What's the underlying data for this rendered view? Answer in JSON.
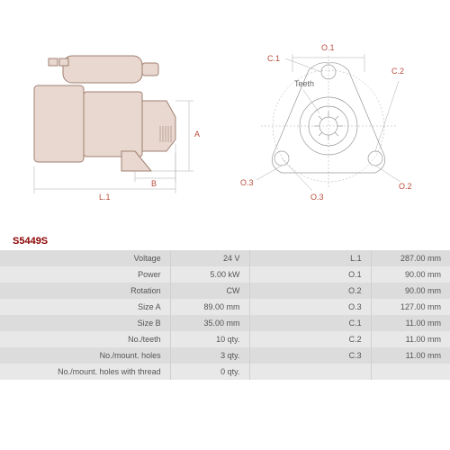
{
  "part_number": "S5449S",
  "side_view": {
    "labels": {
      "L1": "L.1",
      "A": "A",
      "B": "B"
    }
  },
  "front_view": {
    "labels": {
      "O1": "O.1",
      "O2": "O.2",
      "O3": "O.3",
      "C1": "C.1",
      "C2": "C.2",
      "teeth": "Teeth"
    }
  },
  "specs": {
    "rows": [
      {
        "l1": "Voltage",
        "v1": "24 V",
        "l2": "L.1",
        "v2": "287.00 mm"
      },
      {
        "l1": "Power",
        "v1": "5.00 kW",
        "l2": "O.1",
        "v2": "90.00 mm"
      },
      {
        "l1": "Rotation",
        "v1": "CW",
        "l2": "O.2",
        "v2": "90.00 mm"
      },
      {
        "l1": "Size A",
        "v1": "89.00 mm",
        "l2": "O.3",
        "v2": "127.00 mm"
      },
      {
        "l1": "Size B",
        "v1": "35.00 mm",
        "l2": "C.1",
        "v2": "11.00 mm"
      },
      {
        "l1": "No./teeth",
        "v1": "10 qty.",
        "l2": "C.2",
        "v2": "11.00 mm"
      },
      {
        "l1": "No./mount. holes",
        "v1": "3 qty.",
        "l2": "C.3",
        "v2": "11.00 mm"
      },
      {
        "l1": "No./mount. holes with thread",
        "v1": "0 qty.",
        "l2": "",
        "v2": ""
      }
    ]
  },
  "colors": {
    "body_fill": "#e8d8d0",
    "body_stroke": "#a08070",
    "line": "#999999",
    "dim_text": "#b84c3c",
    "part_num": "#8b0000"
  }
}
